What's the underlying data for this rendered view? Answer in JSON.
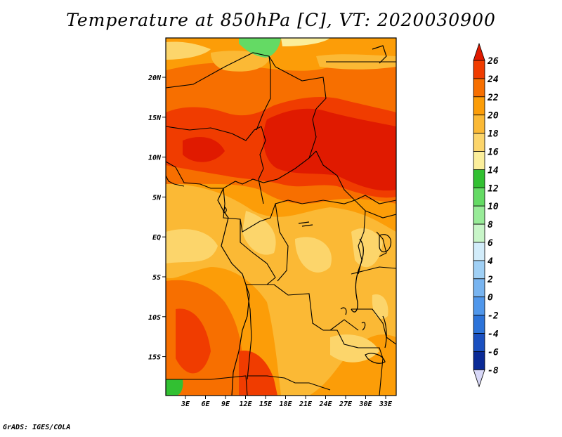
{
  "title": "Temperature at 850hPa [C], VT: 2020030900",
  "credit": "GrADS: IGES/COLA",
  "map": {
    "region": "Central Africa",
    "lon_range": [
      0,
      35
    ],
    "lat_range": [
      -20,
      25
    ],
    "lon_ticks": [
      "3E",
      "6E",
      "9E",
      "12E",
      "15E",
      "18E",
      "21E",
      "24E",
      "27E",
      "30E",
      "33E"
    ],
    "lat_ticks": [
      "20N",
      "15N",
      "10N",
      "5N",
      "EQ",
      "5S",
      "10S",
      "15S"
    ]
  },
  "colorbar": {
    "labels": [
      "26",
      "24",
      "22",
      "20",
      "18",
      "16",
      "14",
      "12",
      "10",
      "8",
      "6",
      "4",
      "2",
      "0",
      "-2",
      "-4",
      "-6",
      "-8"
    ],
    "colors": [
      "#e01a00",
      "#f03c00",
      "#f76f00",
      "#fc9d08",
      "#fbb935",
      "#fcd56b",
      "#fbee9b",
      "#32c032",
      "#64da64",
      "#98eb98",
      "#c8f5c8",
      "#d2ecfa",
      "#a0d0f5",
      "#78b4f0",
      "#5097eb",
      "#2c73d9",
      "#1a50c0",
      "#0a2a96",
      "#00006e",
      "#d8d8f8"
    ]
  }
}
